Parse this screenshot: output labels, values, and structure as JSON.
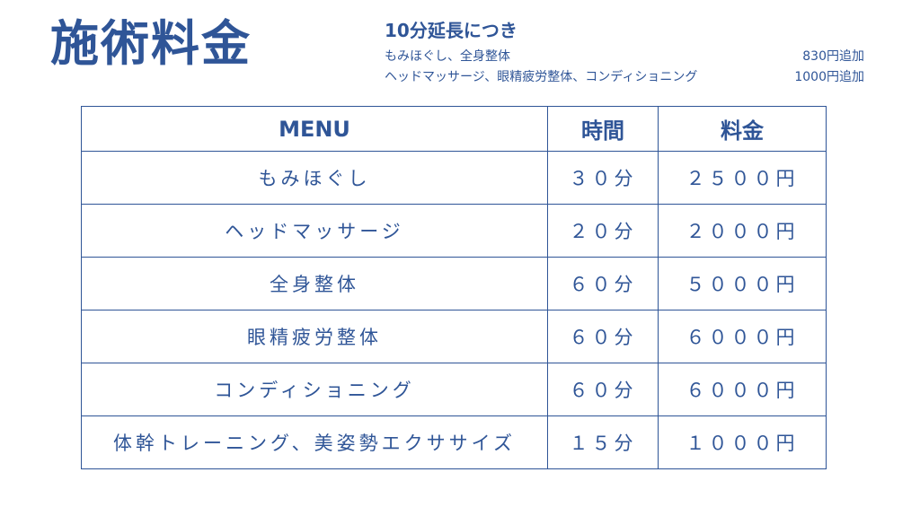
{
  "title": "施術料金",
  "extension": {
    "title": "10分延長につき",
    "items": [
      {
        "name": "もみほぐし、全身整体",
        "price": "830円追加"
      },
      {
        "name": "ヘッドマッサージ、眼精疲労整体、コンディショニング",
        "price": "1000円追加"
      }
    ]
  },
  "table": {
    "headers": [
      "MENU",
      "時間",
      "料金"
    ],
    "rows": [
      {
        "menu": "もみほぐし",
        "time": "３０分",
        "price": "２５００円"
      },
      {
        "menu": "ヘッドマッサージ",
        "time": "２０分",
        "price": "２０００円"
      },
      {
        "menu": "全身整体",
        "time": "６０分",
        "price": "５０００円"
      },
      {
        "menu": "眼精疲労整体",
        "time": "６０分",
        "price": "６０００円"
      },
      {
        "menu": "コンディショニング",
        "time": "６０分",
        "price": "６０００円"
      },
      {
        "menu": "体幹トレーニング、美姿勢エクササイズ",
        "time": "１５分",
        "price": "１０００円"
      }
    ]
  },
  "colors": {
    "text": "#2f5597",
    "border": "#2f5597",
    "background": "#ffffff"
  }
}
